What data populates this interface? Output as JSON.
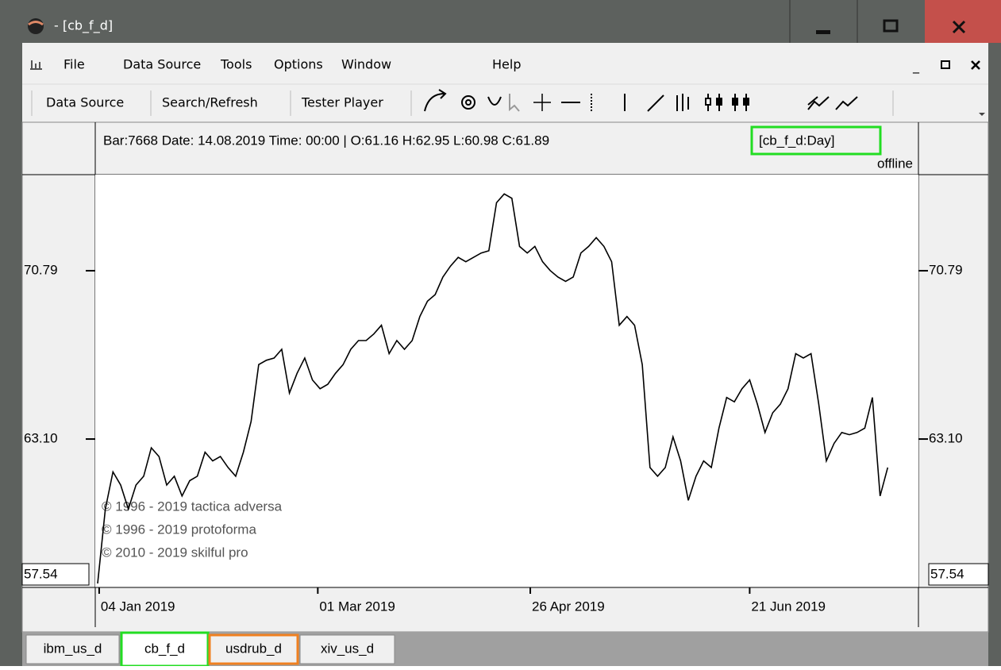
{
  "window": {
    "title": "- [cb_f_d]"
  },
  "menu": [
    "File",
    "Data Source",
    "Tools",
    "Options",
    "Window",
    "Help"
  ],
  "toolbar": [
    "Data Source",
    "Search/Refresh",
    "Tester Player"
  ],
  "chart_data": {
    "type": "line",
    "info": "Bar:7668 Date: 14.08.2019 Time: 00:00 | O:61.16 H:62.95 L:60.98 C:61.89",
    "symbol_label": "[cb_f_d:Day]",
    "status": "offline",
    "low_label": 57.54,
    "annotations": [
      "© 1996 - 2019 tactica adversa",
      "© 1996 - 2019 protoforma",
      "© 2010 - 2019 skilful pro"
    ],
    "ylim": [
      56.32,
      75.18
    ],
    "yticks": [
      70.79,
      {
        "value": 63.1,
        "label": "63.10"
      }
    ],
    "xlim": [
      -0.31,
      107
    ],
    "xticks": [
      {
        "value": 0.2,
        "label": "04 Jan 2019"
      },
      {
        "value": 28.7,
        "label": "01 Mar 2019"
      },
      {
        "value": 56.4,
        "label": "26 Apr 2019"
      },
      {
        "value": 85,
        "label": "21 Jun 2019"
      }
    ],
    "series": [
      {
        "color": "#000000",
        "values": [
          56.5,
          59.9,
          61.6,
          61.0,
          59.9,
          61.0,
          61.4,
          62.7,
          62.3,
          61.0,
          61.4,
          60.5,
          61.2,
          61.4,
          62.5,
          62.1,
          62.3,
          61.8,
          61.4,
          62.5,
          63.9,
          66.5,
          66.7,
          66.8,
          67.2,
          65.2,
          66.1,
          66.8,
          65.8,
          65.4,
          65.6,
          66.1,
          66.5,
          67.2,
          67.6,
          67.6,
          67.9,
          68.3,
          67.0,
          67.6,
          67.2,
          67.6,
          68.7,
          69.4,
          69.7,
          70.5,
          71.0,
          71.4,
          71.2,
          71.4,
          71.6,
          71.7,
          73.9,
          74.3,
          74.1,
          71.9,
          71.6,
          71.9,
          71.2,
          70.8,
          70.5,
          70.3,
          70.5,
          71.6,
          71.9,
          72.3,
          71.9,
          71.2,
          68.3,
          68.7,
          68.3,
          66.5,
          61.8,
          61.4,
          61.8,
          63.2,
          62.1,
          60.3,
          61.4,
          62.1,
          61.8,
          63.6,
          65.0,
          64.8,
          65.4,
          65.8,
          64.7,
          63.4,
          64.3,
          64.7,
          65.4,
          67.0,
          66.8,
          67.0,
          64.7,
          62.1,
          62.9,
          63.4,
          63.3,
          63.4,
          63.6,
          65.0,
          60.5,
          61.8
        ]
      }
    ]
  },
  "tabs": [
    "ibm_us_d",
    "cb_f_d",
    "usdrub_d",
    "xiv_us_d"
  ]
}
